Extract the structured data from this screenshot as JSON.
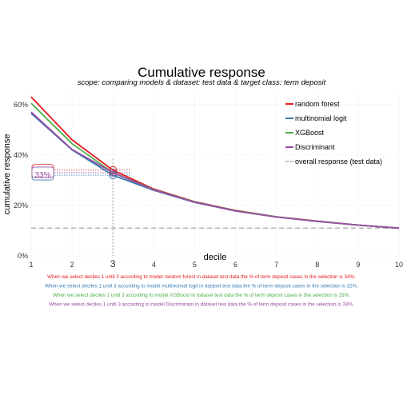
{
  "chart_data": {
    "type": "line",
    "title": "Cumulative response",
    "subtitle": "scope: comparing models & dataset: test data & target class: term deposit",
    "xlabel": "decile",
    "ylabel": "cumulative response",
    "x": [
      1,
      2,
      3,
      4,
      5,
      6,
      7,
      8,
      9,
      10
    ],
    "x_ticks": [
      "1",
      "2",
      "3",
      "4",
      "5",
      "6",
      "7",
      "8",
      "9",
      "10"
    ],
    "xlim": [
      1,
      10
    ],
    "ylim": [
      0,
      0.65
    ],
    "y_ticks": [
      0,
      0.2,
      0.4,
      0.6
    ],
    "y_tick_labels": [
      "0%",
      "20%",
      "40%",
      "60%"
    ],
    "grid": true,
    "legend_position": "top-right",
    "highlight_decile": 3,
    "annotation_label": "33%",
    "series": [
      {
        "name": "random forest",
        "color": "#e41a1c",
        "values": [
          0.63,
          0.46,
          0.34,
          0.265,
          0.215,
          0.18,
          0.155,
          0.138,
          0.122,
          0.11
        ]
      },
      {
        "name": "multinomial logit",
        "color": "#377eb8",
        "values": [
          0.565,
          0.42,
          0.32,
          0.26,
          0.212,
          0.178,
          0.154,
          0.137,
          0.122,
          0.11
        ]
      },
      {
        "name": "XGBoost",
        "color": "#4daf4a",
        "values": [
          0.605,
          0.445,
          0.33,
          0.263,
          0.214,
          0.179,
          0.155,
          0.137,
          0.122,
          0.11
        ]
      },
      {
        "name": "Discriminant",
        "color": "#984ea3",
        "values": [
          0.57,
          0.422,
          0.33,
          0.262,
          0.213,
          0.178,
          0.154,
          0.137,
          0.122,
          0.11
        ]
      }
    ],
    "reference": {
      "name": "overall response (test data)",
      "color": "#b3b3b3",
      "value": 0.11
    },
    "captions": [
      {
        "text": "When we select deciles 1 until 3 according to model random forest in dataset test data the % of term deposit cases in the selection is 34%.",
        "color": "#e41a1c"
      },
      {
        "text": "When we select deciles 1 until 3 according to model multinomial logit in dataset test data the % of term deposit cases in the selection is 32%.",
        "color": "#377eb8"
      },
      {
        "text": "When we select deciles 1 until 3 according to model XGBoost in dataset test data the % of term deposit cases in the selection is 33%.",
        "color": "#4daf4a"
      },
      {
        "text": "When we select deciles 1 until 3 according to model Discriminant in dataset test data the % of term deposit cases in the selection is 33%.",
        "color": "#984ea3"
      }
    ]
  }
}
